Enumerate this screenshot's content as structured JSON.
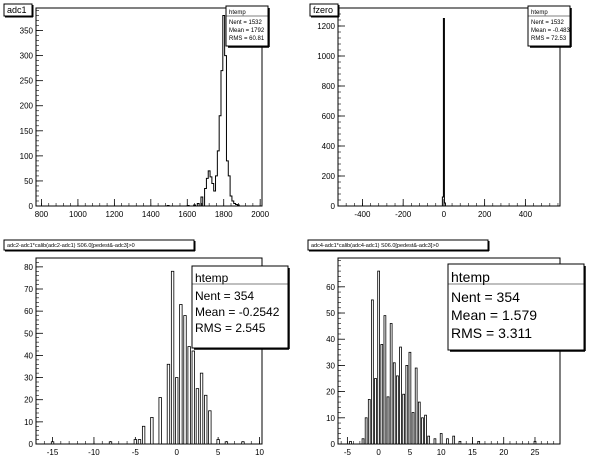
{
  "chart_data": [
    {
      "type": "bar",
      "title": "adc1",
      "stats": {
        "name": "htemp",
        "lines": [
          "Nent = 1532",
          "Mean = 1792",
          "RMS = 60.81"
        ]
      },
      "xlim": [
        770,
        2010
      ],
      "ylim": [
        0,
        395
      ],
      "xticks": [
        800,
        1000,
        1200,
        1400,
        1600,
        1800,
        2000
      ],
      "yticks": [
        0,
        50,
        100,
        150,
        200,
        250,
        300,
        350
      ],
      "draw": "steps",
      "bins": [
        {
          "x": 1495,
          "y": 1
        },
        {
          "x": 1605,
          "y": 1
        },
        {
          "x": 1640,
          "y": 2
        },
        {
          "x": 1660,
          "y": 5
        },
        {
          "x": 1680,
          "y": 18
        },
        {
          "x": 1700,
          "y": 35
        },
        {
          "x": 1710,
          "y": 55
        },
        {
          "x": 1720,
          "y": 70
        },
        {
          "x": 1730,
          "y": 58
        },
        {
          "x": 1740,
          "y": 45
        },
        {
          "x": 1750,
          "y": 30
        },
        {
          "x": 1760,
          "y": 60
        },
        {
          "x": 1770,
          "y": 110
        },
        {
          "x": 1780,
          "y": 180
        },
        {
          "x": 1790,
          "y": 270
        },
        {
          "x": 1800,
          "y": 380
        },
        {
          "x": 1810,
          "y": 300
        },
        {
          "x": 1820,
          "y": 90
        },
        {
          "x": 1830,
          "y": 60
        },
        {
          "x": 1840,
          "y": 20
        },
        {
          "x": 1850,
          "y": 10
        },
        {
          "x": 1860,
          "y": 5
        },
        {
          "x": 1870,
          "y": 3
        },
        {
          "x": 1880,
          "y": 2
        }
      ],
      "binwidth": 10
    },
    {
      "type": "bar",
      "title": "fzero",
      "stats": {
        "name": "htemp",
        "lines": [
          "Nent = 1532",
          "Mean = -0.483",
          "RMS = 72.53"
        ]
      },
      "xlim": [
        -520,
        570
      ],
      "ylim": [
        0,
        1320
      ],
      "xticks": [
        -400,
        -200,
        0,
        200,
        400
      ],
      "yticks": [
        0,
        200,
        400,
        600,
        800,
        1000,
        1200
      ],
      "draw": "steps",
      "bins": [
        {
          "x": -5,
          "y": 60
        },
        {
          "x": 0,
          "y": 1250
        },
        {
          "x": 5,
          "y": 20
        }
      ],
      "binwidth": 5
    },
    {
      "type": "bar",
      "title": "adc2-adc1*calib(adc2-adc1) S06.0[pedest&-adc3]>0",
      "stats": {
        "name": "htemp",
        "lines": [
          "Nent = 354",
          "Mean  = -0.2542",
          "RMS   = 2.545"
        ]
      },
      "xlim": [
        -17,
        10.3
      ],
      "ylim": [
        0,
        84
      ],
      "xticks": [
        -15,
        -10,
        -5,
        0,
        5,
        10
      ],
      "yticks": [
        0,
        10,
        20,
        30,
        40,
        50,
        60,
        70,
        80
      ],
      "draw": "bars",
      "bins": [
        {
          "x": -15,
          "y": 1
        },
        {
          "x": -8,
          "y": 1
        },
        {
          "x": -5,
          "y": 2
        },
        {
          "x": -4.5,
          "y": 2
        },
        {
          "x": -4,
          "y": 8
        },
        {
          "x": -3,
          "y": 12
        },
        {
          "x": -2,
          "y": 21
        },
        {
          "x": -1,
          "y": 36
        },
        {
          "x": -0.5,
          "y": 78
        },
        {
          "x": 0,
          "y": 30
        },
        {
          "x": 0.5,
          "y": 63
        },
        {
          "x": 1,
          "y": 58
        },
        {
          "x": 1.5,
          "y": 44
        },
        {
          "x": 2,
          "y": 42
        },
        {
          "x": 2.5,
          "y": 25
        },
        {
          "x": 3,
          "y": 32
        },
        {
          "x": 3.5,
          "y": 22
        },
        {
          "x": 4,
          "y": 15
        },
        {
          "x": 5,
          "y": 2
        },
        {
          "x": 6,
          "y": 1
        },
        {
          "x": 8,
          "y": 1
        }
      ],
      "binwidth": 0.3
    },
    {
      "type": "bar",
      "title": "adc4-adc1*calib(adc4-adc1) S06.0[pedest&-adc3]>0",
      "stats": {
        "name": "htemp",
        "lines": [
          "Nent = 354",
          "Mean  =  1.579",
          "RMS   =  3.311"
        ]
      },
      "xlim": [
        -6.5,
        29
      ],
      "ylim": [
        0,
        71
      ],
      "xticks": [
        -5,
        0,
        5,
        10,
        15,
        20,
        25
      ],
      "yticks": [
        0,
        10,
        20,
        30,
        40,
        50,
        60
      ],
      "draw": "bars",
      "bins": [
        {
          "x": -4.5,
          "y": 1
        },
        {
          "x": -2.5,
          "y": 2
        },
        {
          "x": -2,
          "y": 10
        },
        {
          "x": -1.5,
          "y": 17
        },
        {
          "x": -1,
          "y": 55
        },
        {
          "x": -0.5,
          "y": 25
        },
        {
          "x": 0,
          "y": 66
        },
        {
          "x": 0.5,
          "y": 38
        },
        {
          "x": 1,
          "y": 49
        },
        {
          "x": 1.5,
          "y": 18
        },
        {
          "x": 2,
          "y": 46
        },
        {
          "x": 2.5,
          "y": 31
        },
        {
          "x": 3,
          "y": 26
        },
        {
          "x": 3.5,
          "y": 37
        },
        {
          "x": 4,
          "y": 19
        },
        {
          "x": 4.5,
          "y": 30
        },
        {
          "x": 5,
          "y": 35
        },
        {
          "x": 5.5,
          "y": 12
        },
        {
          "x": 6,
          "y": 29
        },
        {
          "x": 6.5,
          "y": 16
        },
        {
          "x": 7,
          "y": 10
        },
        {
          "x": 7.5,
          "y": 11
        },
        {
          "x": 8,
          "y": 3
        },
        {
          "x": 9,
          "y": 2
        },
        {
          "x": 10,
          "y": 4
        },
        {
          "x": 11,
          "y": 2
        },
        {
          "x": 12,
          "y": 3
        },
        {
          "x": 13,
          "y": 1
        },
        {
          "x": 16,
          "y": 1
        },
        {
          "x": 25,
          "y": 1
        }
      ],
      "binwidth": 0.3
    }
  ]
}
